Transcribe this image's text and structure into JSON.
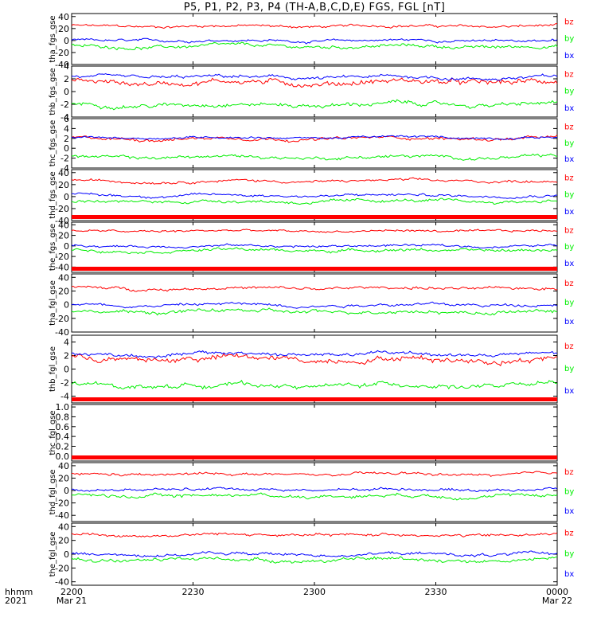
{
  "chart_data": {
    "type": "line",
    "title": "P5, P1, P2, P3, P4 (TH-A,B,C,D,E) FGS, FGL [nT]",
    "x_range": [
      "2021-03-21 22:00",
      "2021-03-22 00:00"
    ],
    "x_ticks": [
      {
        "time": "2021-03-21 22:00",
        "label": "2200",
        "date_label": "Mar 21"
      },
      {
        "time": "2021-03-21 22:30",
        "label": "2230",
        "date_label": ""
      },
      {
        "time": "2021-03-21 23:00",
        "label": "2300",
        "date_label": ""
      },
      {
        "time": "2021-03-21 23:30",
        "label": "2330",
        "date_label": ""
      },
      {
        "time": "2021-03-22 00:00",
        "label": "0000",
        "date_label": "Mar 22"
      }
    ],
    "x_axis_caption": [
      "hhmm",
      "2021"
    ],
    "series_colors": {
      "bz": "#ff0000",
      "by": "#00ee00",
      "bx": "#0000ff"
    },
    "panels": [
      {
        "ylabel": "tha_fgs_gse",
        "ylim": [
          -40,
          45
        ],
        "yticks": [
          40,
          20,
          0,
          -20,
          -40
        ],
        "legend": [
          "bz",
          "by",
          "bx"
        ],
        "has_data": true,
        "no_data_bar": false,
        "series": {
          "bz": {
            "base": 24,
            "amp": 4
          },
          "by": {
            "base": -10,
            "amp": 5
          },
          "bx": {
            "base": 0,
            "amp": 4
          }
        }
      },
      {
        "ylabel": "thb_fgs_gse",
        "ylim": [
          -4,
          4
        ],
        "yticks": [
          4,
          2,
          0,
          -2,
          -4
        ],
        "legend": [
          "bz",
          "by",
          "bx"
        ],
        "has_data": true,
        "no_data_bar": false,
        "series": {
          "bz": {
            "base": 1.5,
            "amp": 0.8
          },
          "by": {
            "base": -2.0,
            "amp": 0.6
          },
          "bx": {
            "base": 2.2,
            "amp": 0.5
          }
        }
      },
      {
        "ylabel": "thc_fgs_gse",
        "ylim": [
          -4,
          6
        ],
        "yticks": [
          6,
          4,
          2,
          0,
          -2,
          -4
        ],
        "legend": [
          "bz",
          "by",
          "bx"
        ],
        "has_data": true,
        "no_data_bar": false,
        "series": {
          "bz": {
            "base": 2.0,
            "amp": 0.6
          },
          "by": {
            "base": -1.8,
            "amp": 0.6
          },
          "bx": {
            "base": 2.2,
            "amp": 0.4
          }
        }
      },
      {
        "ylabel": "thd_fgs_gse",
        "ylim": [
          -40,
          45
        ],
        "yticks": [
          40,
          20,
          0,
          -20,
          -40
        ],
        "legend": [
          "bz",
          "by",
          "bx"
        ],
        "has_data": true,
        "no_data_bar": false,
        "series": {
          "bz": {
            "base": 26,
            "amp": 4
          },
          "by": {
            "base": -8,
            "amp": 5
          },
          "bx": {
            "base": 2,
            "amp": 4
          }
        }
      },
      {
        "ylabel": "the_fgs_gse",
        "ylim": [
          -50,
          45
        ],
        "yticks": [
          40,
          20,
          0,
          -20,
          -40
        ],
        "legend": [
          "bz",
          "by",
          "bx"
        ],
        "has_data": true,
        "no_data_bar": true,
        "series": {
          "bz": {
            "base": 28,
            "amp": 4
          },
          "by": {
            "base": -8,
            "amp": 5
          },
          "bx": {
            "base": 0,
            "amp": 4
          }
        }
      },
      {
        "ylabel": "tha_fgl_gse",
        "ylim": [
          -40,
          45
        ],
        "yticks": [
          40,
          20,
          0,
          -20,
          -40
        ],
        "legend": [
          "bz",
          "by",
          "bx"
        ],
        "has_data": true,
        "no_data_bar": true,
        "series": {
          "bz": {
            "base": 24,
            "amp": 4
          },
          "by": {
            "base": -10,
            "amp": 5
          },
          "bx": {
            "base": 0,
            "amp": 4
          }
        }
      },
      {
        "ylabel": "thb_fgl_gse",
        "ylim": [
          -5,
          5
        ],
        "yticks": [
          4,
          2,
          0,
          -2,
          -4
        ],
        "legend": [
          "bz",
          "by",
          "bx"
        ],
        "has_data": true,
        "no_data_bar": false,
        "series": {
          "bz": {
            "base": 1.5,
            "amp": 0.8
          },
          "by": {
            "base": -2.4,
            "amp": 0.6
          },
          "bx": {
            "base": 2.2,
            "amp": 0.5
          }
        }
      },
      {
        "ylabel": "thc_fgl_gse",
        "ylim": [
          -0.1,
          1.05
        ],
        "yticks": [
          1.0,
          0.8,
          0.6,
          0.4,
          0.2,
          0.0
        ],
        "legend": [],
        "has_data": false,
        "no_data_bar": true,
        "series": {}
      },
      {
        "ylabel": "thd_fgl_gse",
        "ylim": [
          -50,
          45
        ],
        "yticks": [
          40,
          20,
          0,
          -20,
          -40
        ],
        "legend": [
          "bz",
          "by",
          "bx"
        ],
        "has_data": true,
        "no_data_bar": true,
        "series": {
          "bz": {
            "base": 26,
            "amp": 4
          },
          "by": {
            "base": -8,
            "amp": 5
          },
          "bx": {
            "base": 2,
            "amp": 4
          }
        }
      },
      {
        "ylabel": "the_fgl_gse",
        "ylim": [
          -45,
          45
        ],
        "yticks": [
          40,
          20,
          0,
          -20,
          -40
        ],
        "legend": [
          "bz",
          "by",
          "bx"
        ],
        "has_data": true,
        "no_data_bar": false,
        "series": {
          "bz": {
            "base": 28,
            "amp": 4
          },
          "by": {
            "base": -8,
            "amp": 5
          },
          "bx": {
            "base": 0,
            "amp": 4
          }
        }
      }
    ]
  }
}
